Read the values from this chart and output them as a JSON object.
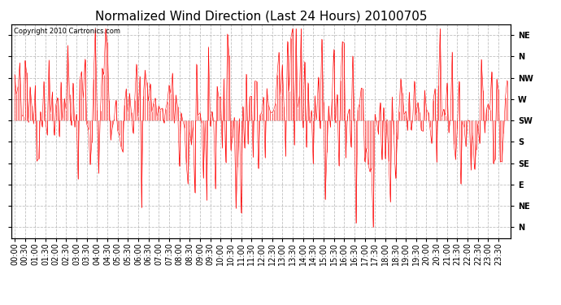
{
  "title": "Normalized Wind Direction (Last 24 Hours) 20100705",
  "copyright_text": "Copyright 2010 Cartronics.com",
  "line_color": "#ff0000",
  "background_color": "#ffffff",
  "plot_background": "#ffffff",
  "grid_color": "#b0b0b0",
  "ytick_labels": [
    "NE",
    "N",
    "NW",
    "W",
    "SW",
    "S",
    "SE",
    "E",
    "NE",
    "N"
  ],
  "ytick_values": [
    10,
    9,
    8,
    7,
    6,
    5,
    4,
    3,
    2,
    1
  ],
  "ylim": [
    0.5,
    10.5
  ],
  "title_fontsize": 11,
  "tick_fontsize": 7,
  "seed": 42,
  "n_points": 288,
  "base_value": 6.0,
  "noise_std": 1.4,
  "xtick_interval": 6,
  "figsize": [
    6.9,
    3.75
  ],
  "dpi": 100
}
